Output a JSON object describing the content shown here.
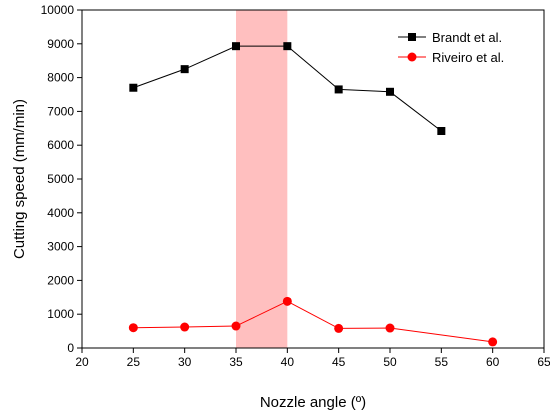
{
  "chart_data": {
    "type": "line",
    "xlabel": "Nozzle angle (º)",
    "ylabel": "Cutting speed (mm/min)",
    "xlim": [
      20,
      65
    ],
    "ylim": [
      0,
      10000
    ],
    "x_ticks": [
      20,
      25,
      30,
      35,
      40,
      45,
      50,
      55,
      60,
      65
    ],
    "y_ticks": [
      0,
      1000,
      2000,
      3000,
      4000,
      5000,
      6000,
      7000,
      8000,
      9000,
      10000
    ],
    "grid": false,
    "legend_position": "top-right",
    "highlight_band": {
      "x_start": 35,
      "x_end": 40,
      "color": "#ffbfbf"
    },
    "series": [
      {
        "name": "Brandt et al.",
        "color": "#000000",
        "marker": "square",
        "x": [
          25,
          30,
          35,
          40,
          45,
          50,
          55
        ],
        "y": [
          7700,
          8250,
          8930,
          8930,
          7650,
          7580,
          6420
        ]
      },
      {
        "name": "Riveiro et al.",
        "color": "#ff0000",
        "marker": "circle",
        "x": [
          25,
          30,
          35,
          40,
          45,
          50,
          60
        ],
        "y": [
          600,
          620,
          650,
          1380,
          580,
          590,
          180
        ]
      }
    ]
  }
}
